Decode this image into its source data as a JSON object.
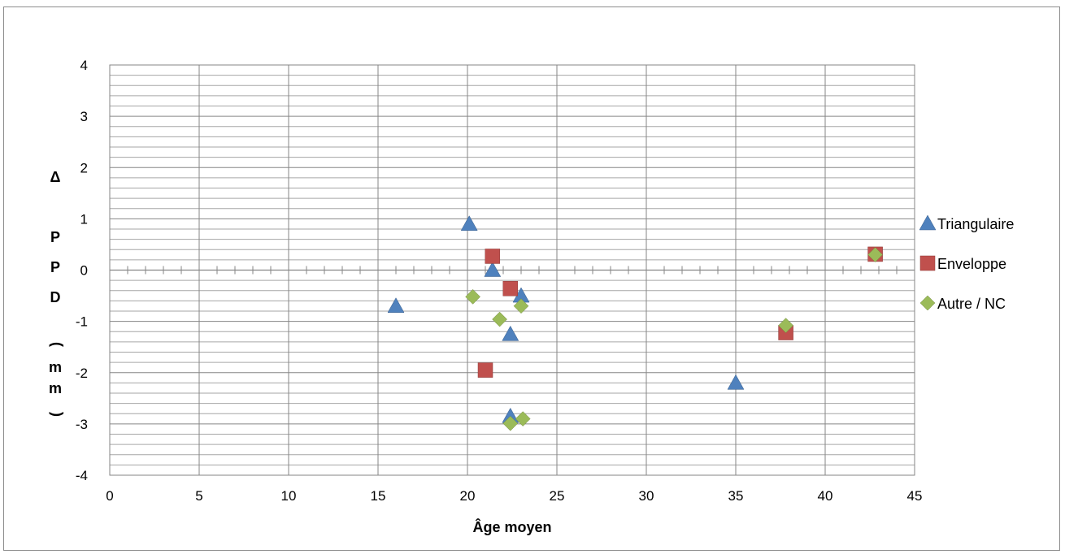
{
  "chart_data": {
    "type": "scatter",
    "title": "",
    "xlabel": "Âge moyen",
    "ylabel": "Δ PPD (mm)",
    "xlim": [
      0,
      45
    ],
    "ylim": [
      -4,
      4
    ],
    "x_ticks": [
      0,
      5,
      10,
      15,
      20,
      25,
      30,
      35,
      40,
      45
    ],
    "y_ticks": [
      -4,
      -3,
      -2,
      -1,
      0,
      1,
      2,
      3,
      4
    ],
    "grid": "on",
    "legend_position": "right",
    "series": [
      {
        "name": "Triangulaire",
        "marker": "triangle",
        "color": "#4f81bd",
        "points": [
          {
            "x": 16.0,
            "y": -0.7
          },
          {
            "x": 20.1,
            "y": 0.9
          },
          {
            "x": 21.4,
            "y": 0.0
          },
          {
            "x": 22.4,
            "y": -1.25
          },
          {
            "x": 22.4,
            "y": -2.85
          },
          {
            "x": 23.0,
            "y": -0.5
          },
          {
            "x": 35.0,
            "y": -2.2
          }
        ]
      },
      {
        "name": "Enveloppe",
        "marker": "square",
        "color": "#c0504d",
        "points": [
          {
            "x": 21.0,
            "y": -1.95
          },
          {
            "x": 21.4,
            "y": 0.27
          },
          {
            "x": 22.4,
            "y": -0.36
          },
          {
            "x": 37.8,
            "y": -1.22
          },
          {
            "x": 42.8,
            "y": 0.31
          }
        ]
      },
      {
        "name": "Autre / NC",
        "marker": "diamond",
        "color": "#9bbb59",
        "points": [
          {
            "x": 20.3,
            "y": -0.52
          },
          {
            "x": 21.8,
            "y": -0.96
          },
          {
            "x": 22.4,
            "y": -2.99
          },
          {
            "x": 23.0,
            "y": -0.7
          },
          {
            "x": 23.1,
            "y": -2.9
          },
          {
            "x": 37.8,
            "y": -1.08
          },
          {
            "x": 42.8,
            "y": 0.3
          }
        ]
      }
    ]
  }
}
